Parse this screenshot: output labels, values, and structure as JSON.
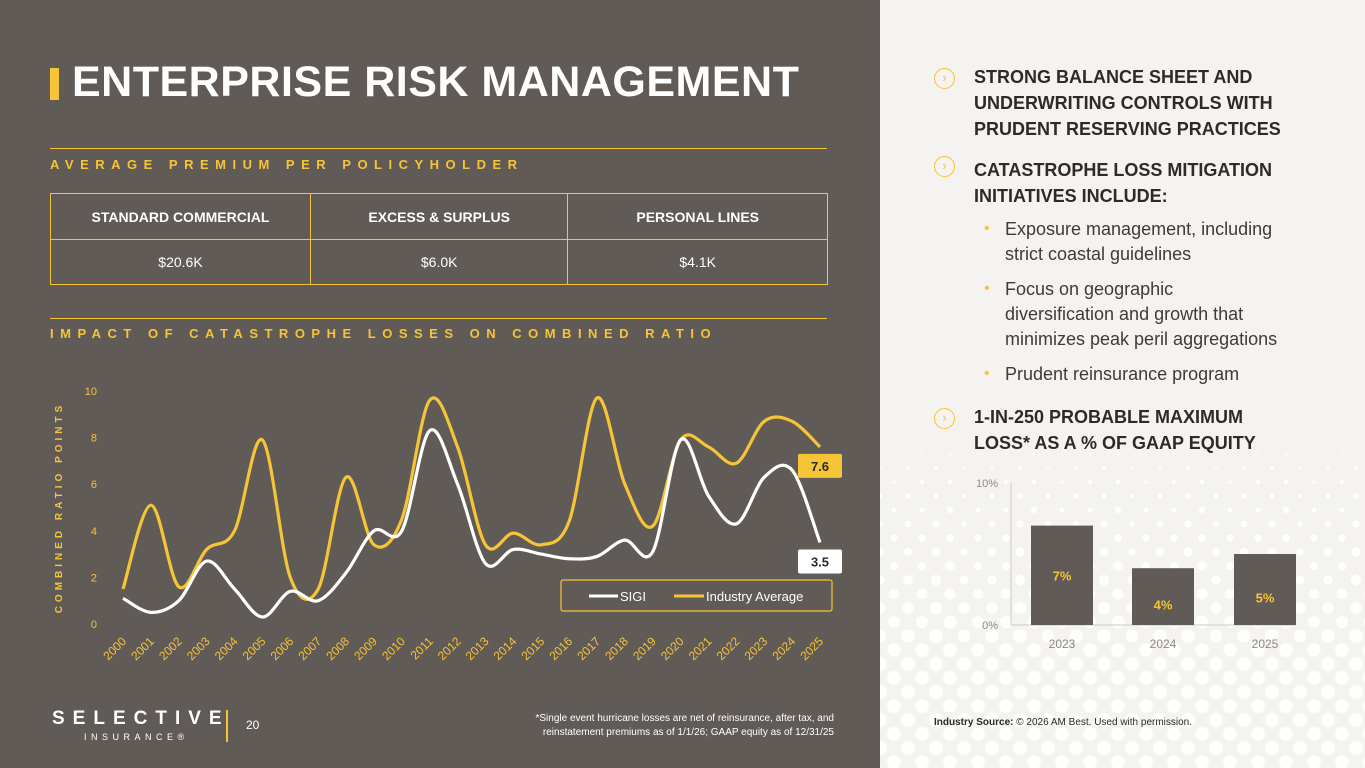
{
  "title": "ENTERPRISE RISK MANAGEMENT",
  "premium_section": {
    "heading": "AVERAGE PREMIUM PER POLICYHOLDER",
    "columns": [
      "STANDARD COMMERCIAL",
      "EXCESS & SURPLUS",
      "PERSONAL LINES"
    ],
    "values": [
      "$20.6K",
      "$6.0K",
      "$4.1K"
    ]
  },
  "cat_section": {
    "heading": "IMPACT OF CATASTROPHE LOSSES ON COMBINED RATIO"
  },
  "right_panel": {
    "bullet1": [
      "STRONG BALANCE SHEET AND",
      "UNDERWRITING CONTROLS WITH",
      "PRUDENT RESERVING PRACTICES"
    ],
    "bullet2": [
      "CATASTROPHE LOSS MITIGATION",
      "INITIATIVES INCLUDE:"
    ],
    "sub_bullets": [
      [
        "Exposure management, including",
        "strict coastal guidelines"
      ],
      [
        "Focus on geographic",
        "diversification and growth that",
        "minimizes peak peril aggregations"
      ],
      [
        "Prudent reinsurance program"
      ]
    ],
    "bullet3": [
      "1-IN-250 PROBABLE MAXIMUM",
      "LOSS* AS A % OF GAAP EQUITY"
    ],
    "industry_label": "Industry Source:",
    "industry_text": "© 2026 AM Best. Used with permission."
  },
  "footer": {
    "logo": "SELECTIVE",
    "logo_sub": "INSURANCE®",
    "page": "20",
    "footnote_lines": [
      "*Single event hurricane losses are net of reinsurance, after tax, and",
      "reinstatement premiums as of 1/1/26; GAAP equity as of 12/31/25"
    ]
  },
  "chart_data": [
    {
      "type": "line",
      "title": "IMPACT OF CATASTROPHE LOSSES ON COMBINED RATIO",
      "ylabel": "COMBINED RATIO POINTS",
      "ylim": [
        0,
        10
      ],
      "yticks": [
        0,
        2,
        4,
        6,
        8,
        10
      ],
      "x": [
        "2000",
        "2001",
        "2002",
        "2003",
        "2004",
        "2005",
        "2006",
        "2007",
        "2008",
        "2009",
        "2010",
        "2011",
        "2012",
        "2013",
        "2014",
        "2015",
        "2016",
        "2017",
        "2018",
        "2019",
        "2020",
        "2021",
        "2022",
        "2023",
        "2024",
        "2025"
      ],
      "series": [
        {
          "name": "SIGI",
          "color": "#ffffff",
          "values": [
            1.1,
            0.5,
            1.0,
            2.7,
            1.5,
            0.3,
            1.4,
            1.0,
            2.2,
            4.0,
            4.0,
            8.3,
            6.0,
            2.6,
            3.2,
            3.0,
            2.8,
            2.9,
            3.6,
            3.1,
            7.9,
            5.5,
            4.3,
            6.3,
            6.6,
            3.5
          ],
          "end_label": "3.5"
        },
        {
          "name": "Industry Average",
          "color": "#f6c437",
          "values": [
            1.5,
            5.1,
            1.6,
            3.2,
            4.0,
            7.9,
            2.0,
            1.5,
            6.3,
            3.4,
            4.5,
            9.6,
            7.6,
            3.4,
            3.9,
            3.4,
            4.4,
            9.7,
            6.0,
            4.2,
            7.9,
            7.6,
            6.9,
            8.7,
            8.7,
            7.6
          ],
          "end_label": "7.6"
        }
      ],
      "legend": "bottom-right"
    },
    {
      "type": "bar",
      "title": "1-IN-250 PROBABLE MAXIMUM LOSS* AS A % OF GAAP EQUITY",
      "categories": [
        "2023",
        "2024",
        "2025"
      ],
      "values": [
        7,
        4,
        5
      ],
      "value_labels": [
        "7%",
        "4%",
        "5%"
      ],
      "ylim": [
        0,
        10
      ],
      "ytick_labels": [
        "0%",
        "10%"
      ],
      "color": "#615b57",
      "label_color": "#f6c437"
    }
  ]
}
